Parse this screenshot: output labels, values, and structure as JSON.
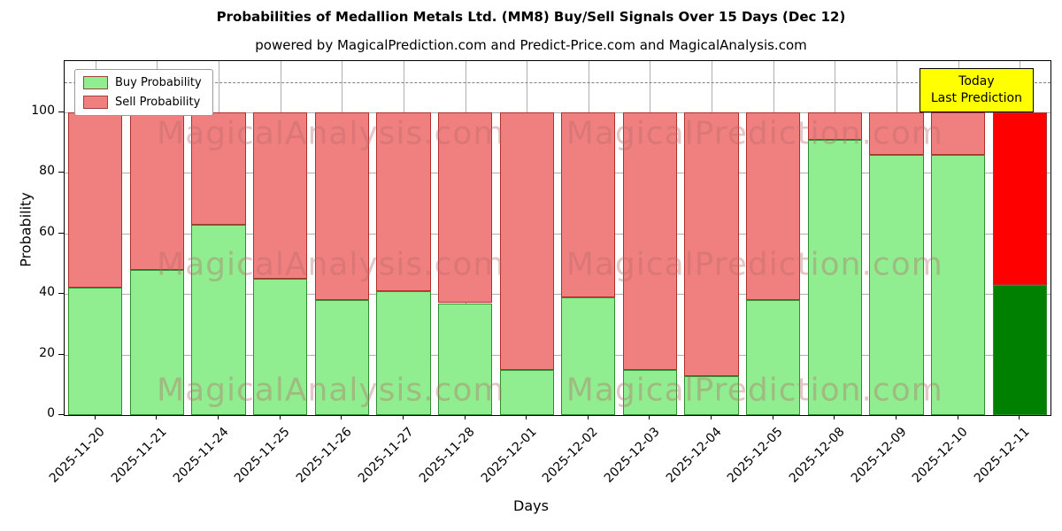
{
  "title": "Probabilities of Medallion Metals Ltd. (MM8) Buy/Sell Signals Over 15 Days (Dec 12)",
  "subtitle": "powered by MagicalPrediction.com and Predict-Price.com and MagicalAnalysis.com",
  "axes": {
    "x_label": "Days",
    "y_label": "Probability",
    "y_ticks": [
      0,
      20,
      40,
      60,
      80,
      100
    ]
  },
  "legend": {
    "items": [
      {
        "label": "Buy Probability",
        "color": "#90EE90"
      },
      {
        "label": "Sell Probability",
        "color": "#F08080"
      }
    ]
  },
  "annotation": {
    "line1": "Today",
    "line2": "Last Prediction",
    "bg_color": "#FFFF00"
  },
  "watermarks": [
    "MagicalAnalysis.com",
    "MagicalPrediction.com"
  ],
  "chart_data": {
    "type": "bar",
    "stacked": true,
    "title": "Probabilities of Medallion Metals Ltd. (MM8) Buy/Sell Signals Over 15 Days (Dec 12)",
    "xlabel": "Days",
    "ylabel": "Probability",
    "ylim": [
      0,
      117
    ],
    "grid": true,
    "dashed_threshold_y": 110,
    "legend_position": "upper left",
    "categories": [
      "2025-11-20",
      "2025-11-21",
      "2025-11-24",
      "2025-11-25",
      "2025-11-26",
      "2025-11-27",
      "2025-11-28",
      "2025-12-01",
      "2025-12-02",
      "2025-12-03",
      "2025-12-04",
      "2025-12-05",
      "2025-12-08",
      "2025-12-09",
      "2025-12-10",
      "2025-12-11"
    ],
    "series": [
      {
        "name": "Buy Probability",
        "color": "#90EE90",
        "edge_color": "#2f8f2f",
        "today_color": "#008000",
        "values": [
          42,
          48,
          63,
          45,
          38,
          41,
          37,
          15,
          39,
          15,
          13,
          38,
          91,
          86,
          86,
          43
        ]
      },
      {
        "name": "Sell Probability",
        "color": "#F08080",
        "edge_color": "#b03030",
        "today_color": "#FF0000",
        "values": [
          58,
          52,
          37,
          55,
          62,
          59,
          63,
          85,
          61,
          85,
          87,
          62,
          9,
          14,
          14,
          57
        ]
      }
    ],
    "today_index": 15
  }
}
